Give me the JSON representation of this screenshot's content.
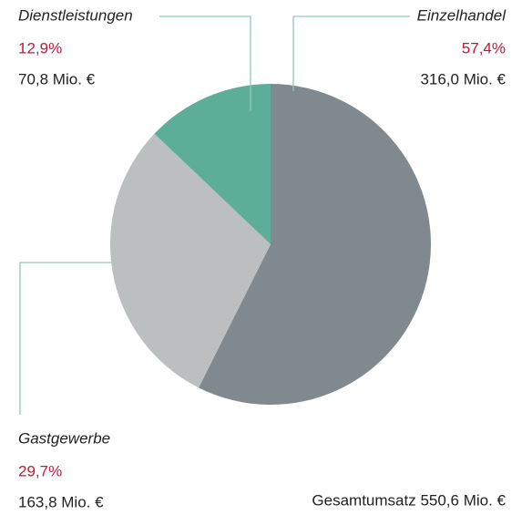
{
  "chart_data": {
    "type": "pie",
    "categories": [
      "Einzelhandel",
      "Gastgewerbe",
      "Dienstleistungen"
    ],
    "values": [
      57.4,
      29.7,
      12.9
    ],
    "value_labels": [
      "57,4%",
      "29,7%",
      "12,9%"
    ],
    "amounts": [
      "316,0 Mio. €",
      "163,8 Mio. €",
      "70,8 Mio. €"
    ],
    "colors": [
      "#80898e",
      "#bcbfc0",
      "#5cae98"
    ],
    "value_label_color": "#c0163c",
    "total_label": "Gesamtumsatz 550,6 Mio. €"
  }
}
